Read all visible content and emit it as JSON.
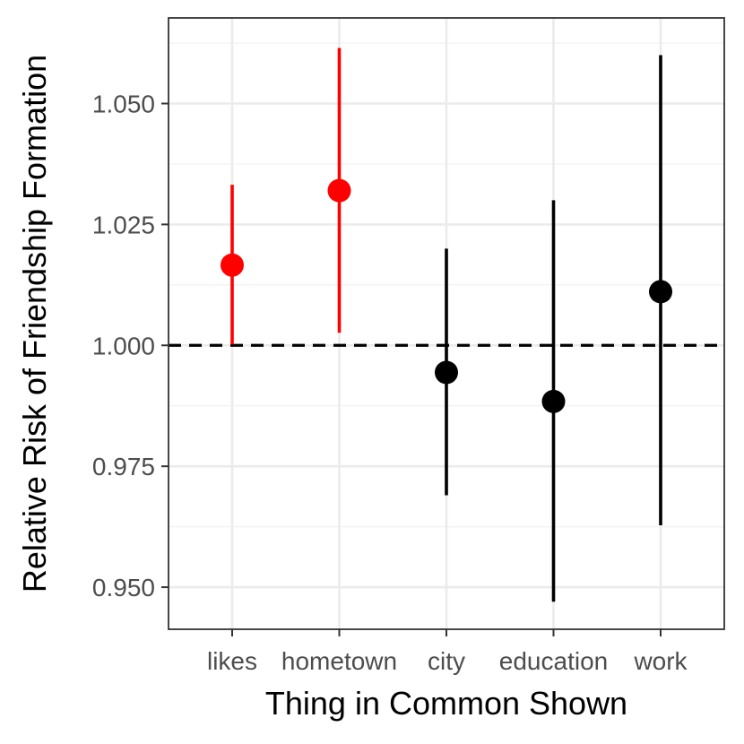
{
  "chart_data": {
    "type": "scatter",
    "subtype": "pointrange",
    "title": "",
    "xlabel": "Thing in Common Shown",
    "ylabel": "Relative Risk of Friendship Formation",
    "categories": [
      "likes",
      "hometown",
      "city",
      "education",
      "work"
    ],
    "points": [
      {
        "category": "likes",
        "estimate": 1.0166,
        "lower": 1.0002,
        "upper": 1.0332,
        "color": "#ff0000"
      },
      {
        "category": "hometown",
        "estimate": 1.032,
        "lower": 1.0026,
        "upper": 1.0615,
        "color": "#ff0000"
      },
      {
        "category": "city",
        "estimate": 0.9944,
        "lower": 0.969,
        "upper": 1.02,
        "color": "#000000"
      },
      {
        "category": "education",
        "estimate": 0.9884,
        "lower": 0.947,
        "upper": 1.03,
        "color": "#000000"
      },
      {
        "category": "work",
        "estimate": 1.0111,
        "lower": 0.9628,
        "upper": 1.06,
        "color": "#000000"
      }
    ],
    "y_ticks": [
      {
        "value": 0.95,
        "label": "0.950"
      },
      {
        "value": 0.975,
        "label": "0.975"
      },
      {
        "value": 1.0,
        "label": "1.000"
      },
      {
        "value": 1.025,
        "label": "1.025"
      },
      {
        "value": 1.05,
        "label": "1.050"
      }
    ],
    "ylim": [
      0.9413,
      1.0677
    ],
    "reference_line": {
      "value": 1.0,
      "style": "dashed",
      "color": "#000000"
    },
    "grid": true,
    "legend": "none"
  }
}
